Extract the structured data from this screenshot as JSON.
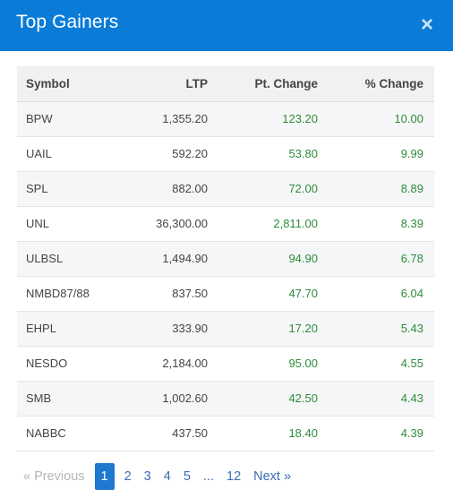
{
  "modal": {
    "title": "Top Gainers",
    "close_glyph": "×"
  },
  "table": {
    "headers": {
      "symbol": "Symbol",
      "ltp": "LTP",
      "pt_change": "Pt. Change",
      "pct_change": "% Change"
    },
    "rows": [
      {
        "symbol": "BPW",
        "ltp": "1,355.20",
        "pt": "123.20",
        "pct": "10.00"
      },
      {
        "symbol": "UAIL",
        "ltp": "592.20",
        "pt": "53.80",
        "pct": "9.99"
      },
      {
        "symbol": "SPL",
        "ltp": "882.00",
        "pt": "72.00",
        "pct": "8.89"
      },
      {
        "symbol": "UNL",
        "ltp": "36,300.00",
        "pt": "2,811.00",
        "pct": "8.39"
      },
      {
        "symbol": "ULBSL",
        "ltp": "1,494.90",
        "pt": "94.90",
        "pct": "6.78"
      },
      {
        "symbol": "NMBD87/88",
        "ltp": "837.50",
        "pt": "47.70",
        "pct": "6.04"
      },
      {
        "symbol": "EHPL",
        "ltp": "333.90",
        "pt": "17.20",
        "pct": "5.43"
      },
      {
        "symbol": "NESDO",
        "ltp": "2,184.00",
        "pt": "95.00",
        "pct": "4.55"
      },
      {
        "symbol": "SMB",
        "ltp": "1,002.60",
        "pt": "42.50",
        "pct": "4.43"
      },
      {
        "symbol": "NABBC",
        "ltp": "437.50",
        "pt": "18.40",
        "pct": "4.39"
      }
    ]
  },
  "pagination": {
    "prev": "« Previous",
    "pages": [
      "1",
      "2",
      "3",
      "4",
      "5",
      "...",
      "12"
    ],
    "active_page": "1",
    "next": "Next »"
  },
  "colors": {
    "header_bg": "#0a7bd7",
    "positive": "#2e8b3a",
    "active_page": "#1e78d0"
  }
}
